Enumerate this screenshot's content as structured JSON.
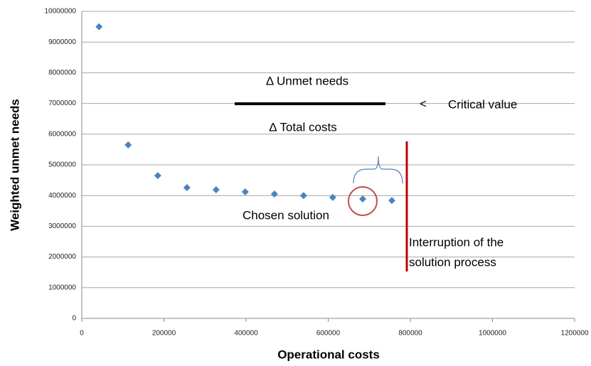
{
  "chart_data": {
    "type": "scatter",
    "x_label": "Operational costs",
    "y_label": "Weighted unmet needs",
    "series": [
      {
        "color": "#4f81bd",
        "x": [
          42000,
          113000,
          185000,
          256000,
          327000,
          398000,
          469000,
          540000,
          611000,
          684000,
          755000
        ],
        "values": [
          9500000,
          5650000,
          4650000,
          4260000,
          4190000,
          4120000,
          4050000,
          4000000,
          3940000,
          3890000,
          3840000
        ]
      }
    ],
    "xlim": [
      0,
      1200000
    ],
    "xticks": [
      0,
      200000,
      400000,
      600000,
      800000,
      1000000,
      1200000
    ],
    "ylim": [
      0,
      10000000
    ],
    "yticks": [
      0,
      1000000,
      2000000,
      3000000,
      4000000,
      5000000,
      6000000,
      7000000,
      8000000,
      9000000,
      10000000
    ],
    "grid": true,
    "annotations": [
      "Δ  Unmet needs",
      "Δ Total costs",
      "<",
      "Critical value",
      "Chosen solution",
      "Interruption of the",
      "solution process"
    ]
  }
}
